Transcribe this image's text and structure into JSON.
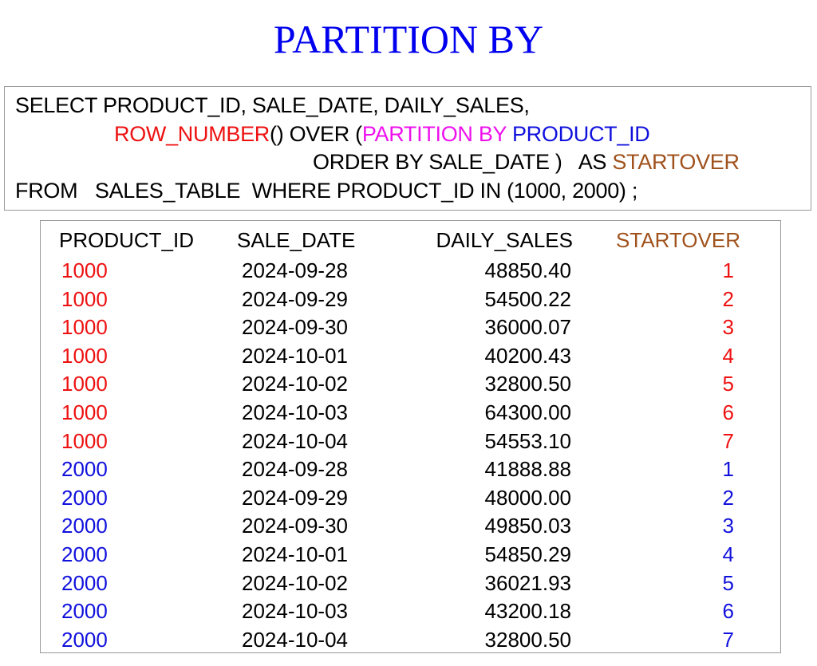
{
  "title": "PARTITION BY",
  "sql": {
    "line1": "SELECT PRODUCT_ID, SALE_DATE, DAILY_SALES,",
    "line2": {
      "fn": "ROW_NUMBER",
      "a": "() OVER (",
      "partition": "PARTITION BY",
      "col": " PRODUCT_ID"
    },
    "line3": {
      "a": "ORDER BY SALE_DATE )   AS ",
      "alias": "STARTOVER"
    },
    "line4": "FROM   SALES_TABLE  WHERE PRODUCT_ID IN (1000, 2000) ;"
  },
  "colors": {
    "product_1000": "#ee1111",
    "product_2000": "#1111dd",
    "startover": "#a0521d",
    "partition": "#ee11ee",
    "title": "#0000ee"
  },
  "table": {
    "headers": [
      "PRODUCT_ID",
      "SALE_DATE",
      "DAILY_SALES",
      "STARTOVER"
    ],
    "rows": [
      [
        "1000",
        "2024-09-28",
        "48850.40",
        "1"
      ],
      [
        "1000",
        "2024-09-29",
        "54500.22",
        "2"
      ],
      [
        "1000",
        "2024-09-30",
        "36000.07",
        "3"
      ],
      [
        "1000",
        "2024-10-01",
        "40200.43",
        "4"
      ],
      [
        "1000",
        "2024-10-02",
        "32800.50",
        "5"
      ],
      [
        "1000",
        "2024-10-03",
        "64300.00",
        "6"
      ],
      [
        "1000",
        "2024-10-04",
        "54553.10",
        "7"
      ],
      [
        "2000",
        "2024-09-28",
        "41888.88",
        "1"
      ],
      [
        "2000",
        "2024-09-29",
        "48000.00",
        "2"
      ],
      [
        "2000",
        "2024-09-30",
        "49850.03",
        "3"
      ],
      [
        "2000",
        "2024-10-01",
        "54850.29",
        "4"
      ],
      [
        "2000",
        "2024-10-02",
        "36021.93",
        "5"
      ],
      [
        "2000",
        "2024-10-03",
        "43200.18",
        "6"
      ],
      [
        "2000",
        "2024-10-04",
        "32800.50",
        "7"
      ]
    ]
  }
}
